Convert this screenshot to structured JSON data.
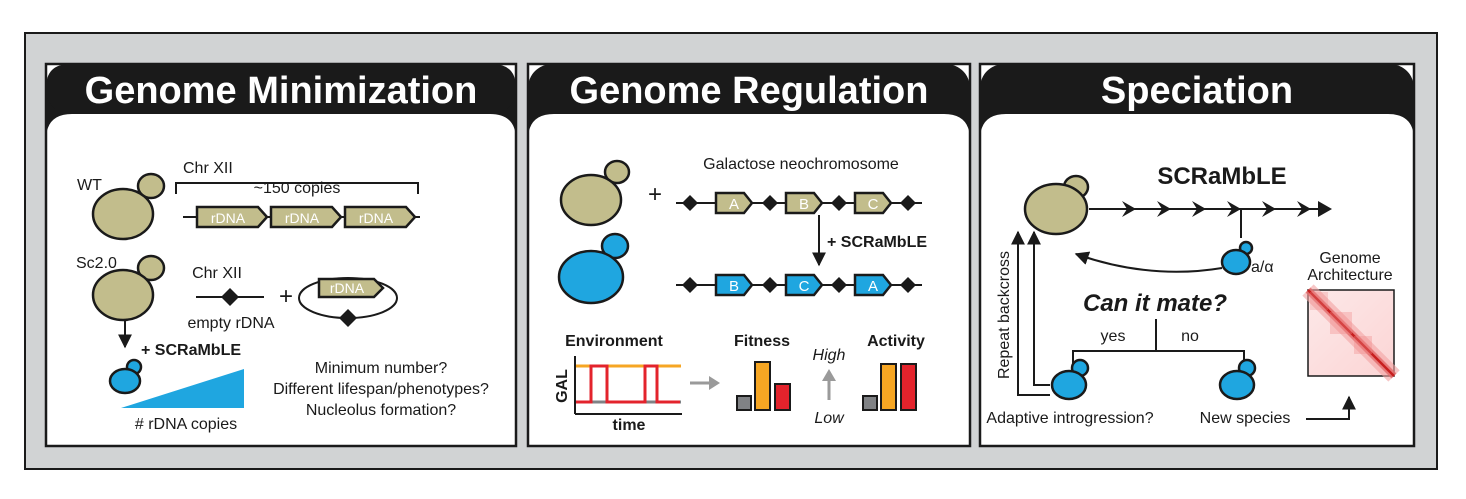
{
  "panels": [
    {
      "title": "Genome Minimization"
    },
    {
      "title": "Genome Regulation"
    },
    {
      "title": "Speciation"
    }
  ],
  "minimization": {
    "wt": "WT",
    "chr_xii_top": "Chr XII",
    "copies": "~150 copies",
    "rdna": "rDNA",
    "sc20": "Sc2.0",
    "chr_xii_bottom": "Chr XII",
    "empty_rdna": "empty rDNA",
    "plus": "+",
    "scramble": "+ SCRaMbLE",
    "rdna_copies": "# rDNA copies",
    "q1": "Minimum number?",
    "q2": "Different lifespan/phenotypes?",
    "q3": "Nucleolus formation?"
  },
  "regulation": {
    "neochromosome": "Galactose neochromosome",
    "plus": "+",
    "genes_top": [
      "A",
      "B",
      "C"
    ],
    "scramble": "+ SCRaMbLE",
    "genes_bottom": [
      "B",
      "C",
      "A"
    ],
    "environment": "Environment",
    "gal": "GAL",
    "time": "time",
    "fitness": "Fitness",
    "high": "High",
    "low": "Low",
    "activity": "Activity"
  },
  "speciation": {
    "scramble": "SCRaMbLE",
    "mating": "a/α",
    "question": "Can it mate?",
    "yes": "yes",
    "no": "no",
    "backcross": "Repeat backcross",
    "adaptive": "Adaptive introgression?",
    "new_species": "New species",
    "genome_arch_1": "Genome",
    "genome_arch_2": "Architecture"
  },
  "colors": {
    "olive": "#c2bd8c",
    "blue": "#1fa6e0",
    "orange": "#f6a623",
    "red": "#e3232c",
    "gray": "#808285"
  }
}
